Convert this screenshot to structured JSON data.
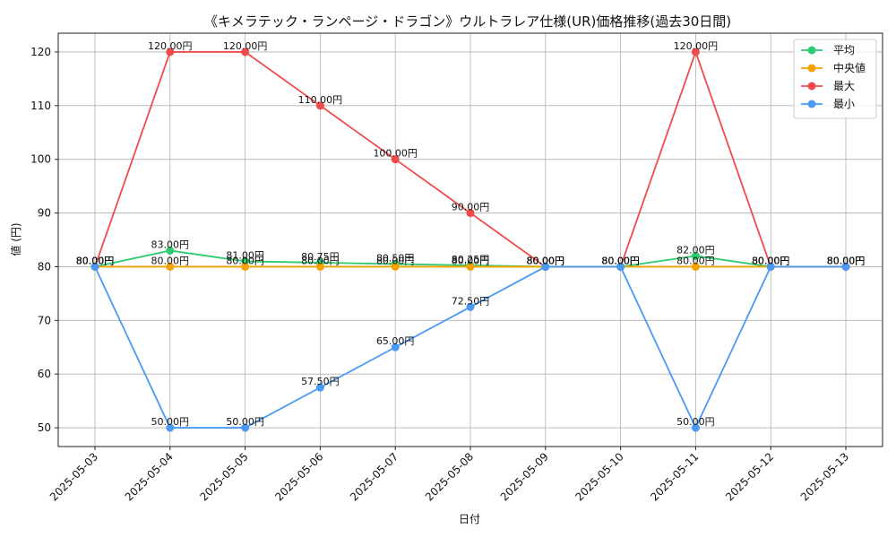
{
  "chart_data": {
    "type": "line",
    "title": "《キメラテック・ランページ・ドラゴン》ウルトラレア仕様(UR)価格推移(過去30日間)",
    "xlabel": "日付",
    "ylabel": "値 (円)",
    "x": [
      "2025-05-03",
      "2025-05-04",
      "2025-05-05",
      "2025-05-06",
      "2025-05-07",
      "2025-05-08",
      "2025-05-09",
      "2025-05-10",
      "2025-05-11",
      "2025-05-12",
      "2025-05-13"
    ],
    "ylim": [
      46.5,
      123.5
    ],
    "yticks": [
      50,
      60,
      70,
      80,
      90,
      100,
      110,
      120
    ],
    "grid": true,
    "legend_position": "top-right",
    "series": [
      {
        "name": "平均",
        "color": "#2ecc71",
        "values": [
          80,
          83,
          81,
          80.75,
          80.5,
          80.25,
          80,
          80,
          82,
          80,
          80
        ]
      },
      {
        "name": "中央値",
        "color": "#f5a100",
        "values": [
          80,
          80,
          80,
          80,
          80,
          80,
          80,
          80,
          80,
          80,
          80
        ]
      },
      {
        "name": "最大",
        "color": "#f04a4a",
        "values": [
          80,
          120,
          120,
          110,
          100,
          90,
          80,
          80,
          120,
          80,
          80
        ]
      },
      {
        "name": "最小",
        "color": "#4a9af5",
        "values": [
          80,
          50,
          50,
          57.5,
          65,
          72.5,
          80,
          80,
          50,
          80,
          80
        ]
      }
    ],
    "data_labels": [
      {
        "series": "平均",
        "labels": [
          "80.00円",
          "83.00円",
          "81.00円",
          "80.75円",
          "80.50円",
          "80.25円",
          "80.00円",
          "80.00円",
          "82.00円",
          "80.00円",
          "80.00円"
        ]
      },
      {
        "series": "中央値",
        "labels": [
          "80.00円",
          "80.00円",
          "80.00円",
          "80.00円",
          "80.00円",
          "80.00円",
          "80.00円",
          "80.00円",
          "80.00円",
          "80.00円",
          "80.00円"
        ]
      },
      {
        "series": "最大",
        "labels": [
          "80.00円",
          "120.00円",
          "120.00円",
          "110.00円",
          "100.00円",
          "90.00円",
          "80.00円",
          "80.00円",
          "120.00円",
          "80.00円",
          "80.00円"
        ]
      },
      {
        "series": "最小",
        "labels": [
          "80.00円",
          "50.00円",
          "50.00円",
          "57.50円",
          "65.00円",
          "72.50円",
          "80.00円",
          "80.00円",
          "50.00円",
          "80.00円",
          "80.00円"
        ]
      }
    ]
  }
}
